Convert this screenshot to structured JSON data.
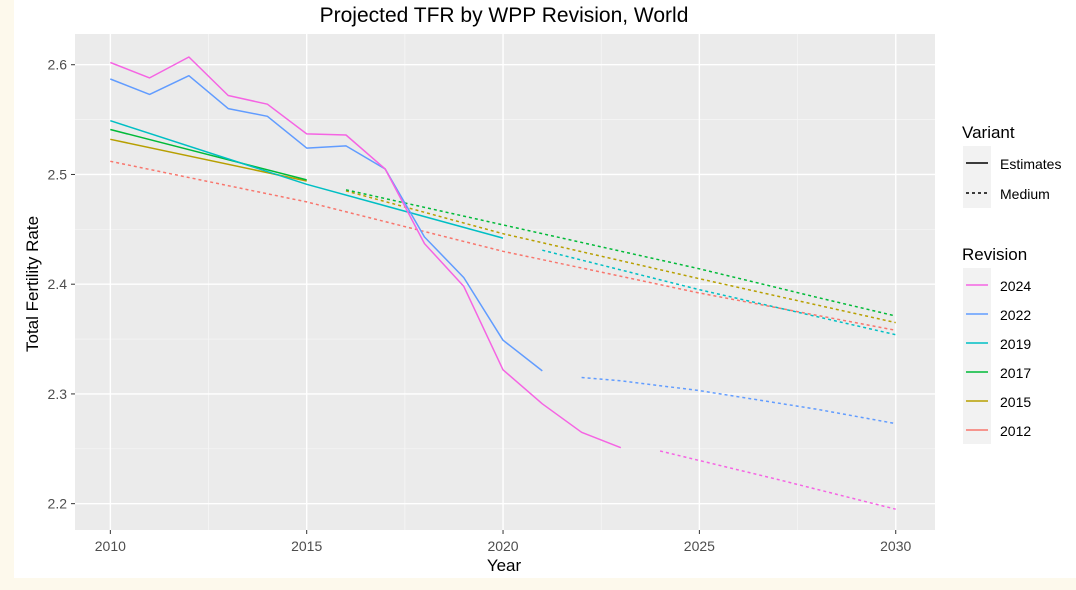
{
  "chart_data": {
    "type": "line",
    "title": "Projected TFR by WPP Revision, World",
    "xlabel": "Year",
    "ylabel": "Total Fertility Rate",
    "xlim": [
      2009.1,
      2031.0
    ],
    "ylim": [
      2.176,
      2.628
    ],
    "x_ticks": [
      2010,
      2015,
      2020,
      2025,
      2030
    ],
    "y_ticks": [
      2.2,
      2.3,
      2.4,
      2.5,
      2.6
    ],
    "y_tick_labels": [
      "2.2",
      "2.3",
      "2.4",
      "2.5",
      "2.6"
    ],
    "grid": true,
    "legend_position": "right",
    "legends": [
      {
        "title": "Variant",
        "key": "variant",
        "entries": [
          {
            "label": "Estimates",
            "dash": "solid"
          },
          {
            "label": "Medium",
            "dash": "dotted"
          }
        ]
      },
      {
        "title": "Revision",
        "key": "revision",
        "entries": [
          {
            "label": "2024",
            "color": "#f564e3"
          },
          {
            "label": "2022",
            "color": "#619cff"
          },
          {
            "label": "2019",
            "color": "#00bfc4"
          },
          {
            "label": "2017",
            "color": "#00ba38"
          },
          {
            "label": "2015",
            "color": "#b79f00"
          },
          {
            "label": "2012",
            "color": "#f8766d"
          }
        ]
      }
    ],
    "series": [
      {
        "name": "2012",
        "variant": "Medium",
        "color": "#f8766d",
        "x": [
          2010,
          2015,
          2020,
          2025,
          2030
        ],
        "y": [
          2.512,
          2.475,
          2.43,
          2.392,
          2.358
        ]
      },
      {
        "name": "2015",
        "variant": "Estimates",
        "color": "#b79f00",
        "x": [
          2010,
          2015
        ],
        "y": [
          2.532,
          2.494
        ]
      },
      {
        "name": "2015",
        "variant": "Medium",
        "color": "#b79f00",
        "x": [
          2016,
          2020,
          2025,
          2030
        ],
        "y": [
          2.485,
          2.446,
          2.405,
          2.365
        ]
      },
      {
        "name": "2017",
        "variant": "Estimates",
        "color": "#00ba38",
        "x": [
          2010,
          2015
        ],
        "y": [
          2.541,
          2.495
        ]
      },
      {
        "name": "2017",
        "variant": "Medium",
        "color": "#00ba38",
        "x": [
          2016,
          2020,
          2025,
          2028,
          2030
        ],
        "y": [
          2.486,
          2.454,
          2.414,
          2.388,
          2.371
        ]
      },
      {
        "name": "2019",
        "variant": "Estimates",
        "color": "#00bfc4",
        "x": [
          2010,
          2015,
          2020
        ],
        "y": [
          2.549,
          2.491,
          2.442
        ]
      },
      {
        "name": "2019",
        "variant": "Medium",
        "color": "#00bfc4",
        "x": [
          2021,
          2025,
          2030
        ],
        "y": [
          2.431,
          2.395,
          2.354
        ]
      },
      {
        "name": "2022",
        "variant": "Estimates",
        "color": "#619cff",
        "x": [
          2010,
          2011,
          2012,
          2013,
          2014,
          2015,
          2016,
          2017,
          2018,
          2019,
          2020,
          2021
        ],
        "y": [
          2.587,
          2.573,
          2.59,
          2.56,
          2.553,
          2.524,
          2.526,
          2.505,
          2.443,
          2.406,
          2.349,
          2.321
        ]
      },
      {
        "name": "2022",
        "variant": "Medium",
        "color": "#619cff",
        "x": [
          2022,
          2023,
          2025,
          2028,
          2030
        ],
        "y": [
          2.315,
          2.312,
          2.303,
          2.286,
          2.273
        ]
      },
      {
        "name": "2024",
        "variant": "Estimates",
        "color": "#f564e3",
        "x": [
          2010,
          2011,
          2012,
          2013,
          2014,
          2015,
          2016,
          2017,
          2018,
          2019,
          2020,
          2021,
          2022,
          2023
        ],
        "y": [
          2.602,
          2.588,
          2.607,
          2.572,
          2.564,
          2.537,
          2.536,
          2.505,
          2.437,
          2.398,
          2.322,
          2.291,
          2.265,
          2.251
        ]
      },
      {
        "name": "2024",
        "variant": "Medium",
        "color": "#f564e3",
        "x": [
          2024,
          2027,
          2030
        ],
        "y": [
          2.248,
          2.222,
          2.195
        ]
      }
    ]
  }
}
